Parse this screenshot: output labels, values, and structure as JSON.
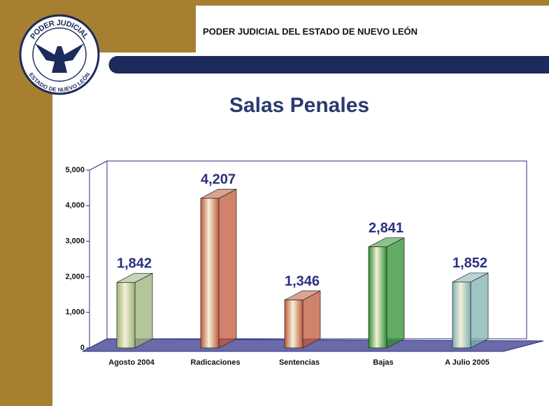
{
  "header": {
    "title": "PODER JUDICIAL DEL ESTADO DE NUEVO LEÓN",
    "logo_top": "PODER JUDICIAL",
    "logo_bottom": "ESTADO DE NUEVO LEÓN"
  },
  "chart_data": {
    "type": "bar3d",
    "title": "Salas Penales",
    "categories": [
      "Agosto 2004",
      "Radicaciones",
      "Sentencias",
      "Bajas",
      "A Julio 2005"
    ],
    "values": [
      1842,
      4207,
      1346,
      2841,
      1852
    ],
    "value_labels": [
      "1,842",
      "4,207",
      "1,346",
      "2,841",
      "1,852"
    ],
    "colors": [
      "#9bb27a",
      "#c0583a",
      "#c0583a",
      "#2f8f2f",
      "#7fb0b0"
    ],
    "ylim": [
      0,
      5000
    ],
    "yticks": [
      0,
      {
        "value": 1000,
        "label": "1,000"
      },
      {
        "value": 2000,
        "label": "2,000"
      },
      {
        "value": 3000,
        "label": "3,000"
      },
      {
        "value": 4000,
        "label": "4,000"
      },
      {
        "value": 5000,
        "label": "5,000"
      }
    ],
    "grid": false
  }
}
